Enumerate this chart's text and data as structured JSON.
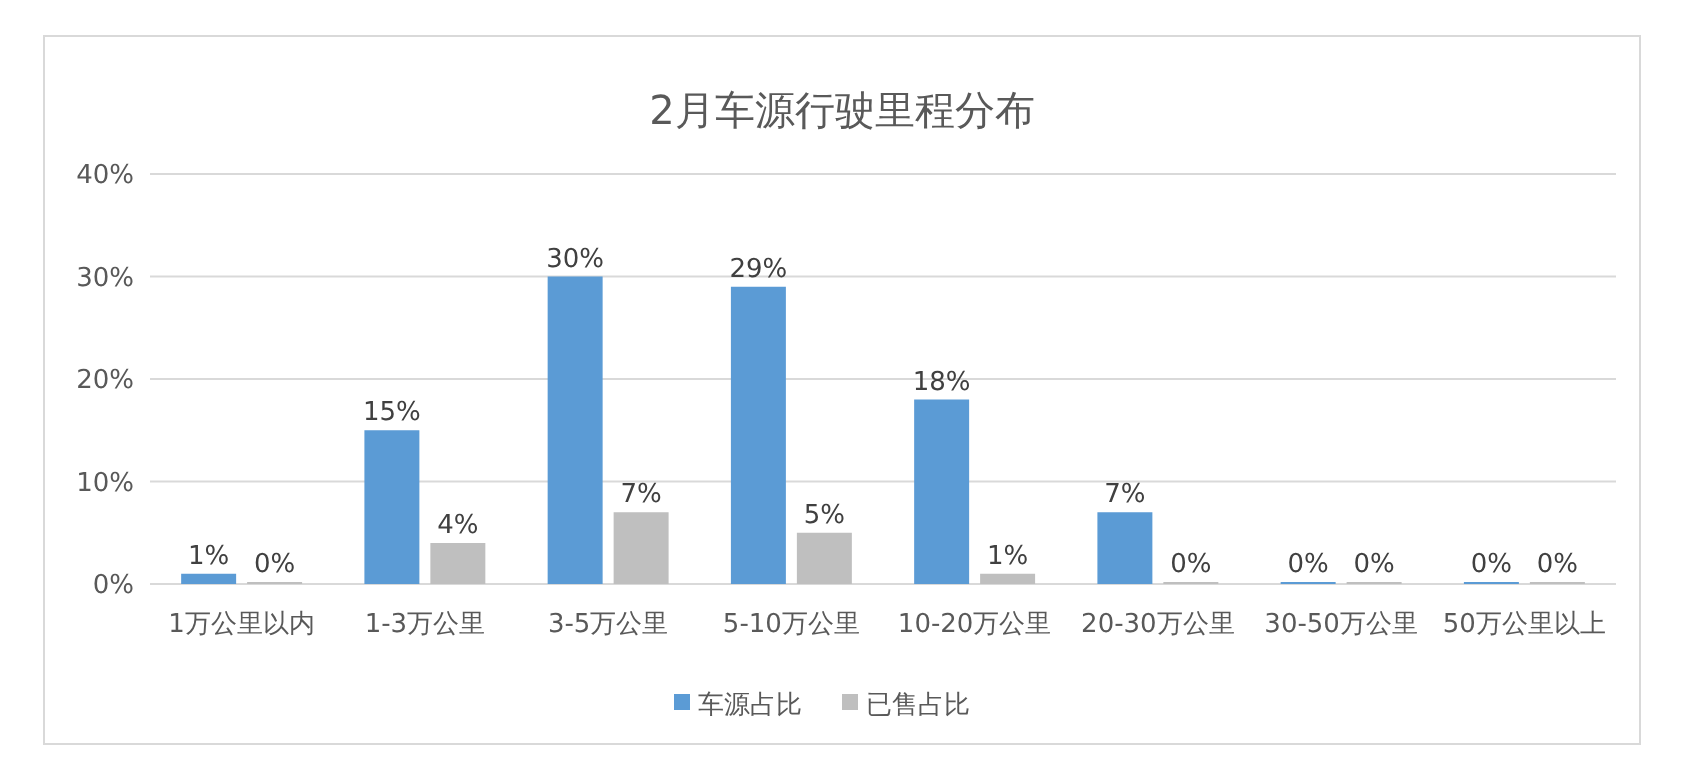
{
  "chart_data": {
    "type": "bar",
    "title": "2月车源行驶里程分布",
    "categories": [
      "1万公里以内",
      "1-3万公里",
      "3-5万公里",
      "5-10万公里",
      "10-20万公里",
      "20-30万公里",
      "30-50万公里",
      "50万公里以上"
    ],
    "series": [
      {
        "name": "车源占比",
        "color": "#5b9bd5",
        "values": [
          1,
          15,
          30,
          29,
          18,
          7,
          0,
          0
        ],
        "value_labels": [
          "1%",
          "15%",
          "30%",
          "29%",
          "18%",
          "7%",
          "0%",
          "0%"
        ]
      },
      {
        "name": "已售占比",
        "color": "#bfbfbf",
        "values": [
          0,
          4,
          7,
          5,
          1,
          0,
          0,
          0
        ],
        "value_labels": [
          "0%",
          "4%",
          "7%",
          "5%",
          "1%",
          "0%",
          "0%",
          "0%"
        ]
      }
    ],
    "ylim": [
      0,
      40
    ],
    "yticks": [
      {
        "value": 0,
        "label": "0%"
      },
      {
        "value": 10,
        "label": "10%"
      },
      {
        "value": 20,
        "label": "20%"
      },
      {
        "value": 30,
        "label": "30%"
      },
      {
        "value": 40,
        "label": "40%"
      }
    ],
    "grid": "y",
    "legend": "bottom"
  }
}
